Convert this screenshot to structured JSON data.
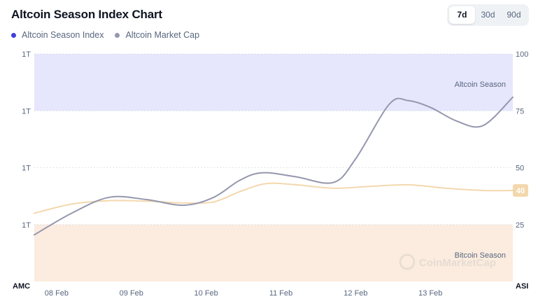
{
  "header": {
    "title": "Altcoin Season Index Chart",
    "ranges": [
      "7d",
      "30d",
      "90d"
    ],
    "active_range": "7d"
  },
  "legend": [
    {
      "label": "Altcoin Season Index",
      "color": "#3f3fde"
    },
    {
      "label": "Altcoin Market Cap",
      "color": "#9497ad"
    }
  ],
  "chart_data": {
    "type": "line",
    "left_axis_name": "AMC",
    "right_axis_name": "ASI",
    "left_ticks": [
      {
        "value": 100,
        "label": "1T"
      },
      {
        "value": 75,
        "label": "1T"
      },
      {
        "value": 50,
        "label": "1T"
      },
      {
        "value": 25,
        "label": "1T"
      }
    ],
    "right_ticks": [
      100,
      75,
      50,
      25
    ],
    "ylim": [
      0,
      100
    ],
    "xlim": [
      0,
      6.4
    ],
    "x_ticks": [
      {
        "x": 0.28,
        "label": "08 Feb"
      },
      {
        "x": 1.28,
        "label": "09 Feb"
      },
      {
        "x": 2.28,
        "label": "10 Feb"
      },
      {
        "x": 3.28,
        "label": "11 Feb"
      },
      {
        "x": 4.28,
        "label": "12 Feb"
      },
      {
        "x": 5.28,
        "label": "13 Feb"
      }
    ],
    "zones": [
      {
        "label": "Altcoin Season",
        "from": 75,
        "to": 100,
        "color": "#e6e6fd"
      },
      {
        "label": "Bitcoin Season",
        "from": 0,
        "to": 25,
        "color": "#fbecdf"
      }
    ],
    "series": [
      {
        "name": "Altcoin Season Index",
        "color": "#f3d8ae",
        "last_label": "40",
        "points": [
          [
            0.0,
            30.0
          ],
          [
            0.5,
            34.0
          ],
          [
            1.0,
            35.5
          ],
          [
            1.5,
            35.3
          ],
          [
            2.0,
            34.5
          ],
          [
            2.4,
            35.0
          ],
          [
            2.75,
            39.5
          ],
          [
            3.1,
            43.0
          ],
          [
            3.5,
            42.5
          ],
          [
            4.0,
            41.0
          ],
          [
            4.5,
            41.8
          ],
          [
            5.0,
            42.5
          ],
          [
            5.5,
            41.0
          ],
          [
            6.0,
            40.0
          ],
          [
            6.4,
            40.0
          ]
        ]
      },
      {
        "name": "Altcoin Market Cap",
        "color": "#9497ad",
        "points": [
          [
            0.0,
            20.5
          ],
          [
            0.5,
            30.0
          ],
          [
            1.0,
            37.0
          ],
          [
            1.5,
            36.0
          ],
          [
            2.0,
            33.5
          ],
          [
            2.4,
            37.0
          ],
          [
            2.75,
            44.5
          ],
          [
            3.05,
            47.8
          ],
          [
            3.5,
            46.0
          ],
          [
            4.0,
            43.5
          ],
          [
            4.3,
            54.0
          ],
          [
            4.75,
            78.0
          ],
          [
            5.0,
            79.5
          ],
          [
            5.3,
            76.5
          ],
          [
            5.65,
            70.5
          ],
          [
            6.0,
            68.5
          ],
          [
            6.4,
            81.0
          ]
        ]
      }
    ]
  },
  "watermark": {
    "text": "CoinMarketCap"
  }
}
